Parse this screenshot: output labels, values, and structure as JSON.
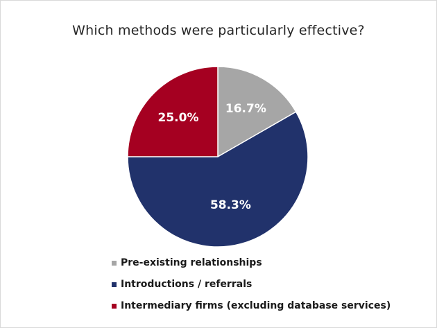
{
  "chart_data": {
    "type": "pie",
    "title": "Which methods were particularly effective?",
    "categories": [
      "Pre-existing relationships",
      "Introductions / referrals",
      "Intermediary firms (excluding database services)"
    ],
    "values": [
      16.7,
      58.3,
      25.0
    ],
    "labels": [
      "16.7%",
      "58.3%",
      "25.0%"
    ],
    "colors": [
      "#a6a6a6",
      "#21326b",
      "#a50021"
    ],
    "start": "12 o'clock, clockwise",
    "legend": "bottom"
  }
}
